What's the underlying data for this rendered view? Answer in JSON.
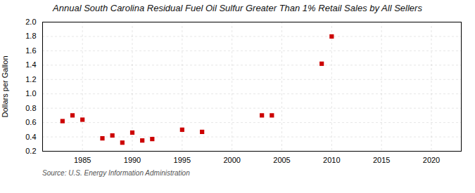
{
  "chart_data": {
    "type": "scatter",
    "title": "Annual South Carolina Residual Fuel Oil Sulfur Greater Than 1% Retail Sales by All Sellers",
    "ylabel": "Dollars per Gallon",
    "source": "Source: U.S. Energy Information Administration",
    "x": [
      1983,
      1984,
      1985,
      1987,
      1988,
      1989,
      1990,
      1991,
      1992,
      1995,
      1997,
      2003,
      2004,
      2009,
      2010
    ],
    "values": [
      0.62,
      0.7,
      0.64,
      0.38,
      0.42,
      0.32,
      0.46,
      0.35,
      0.37,
      0.5,
      0.47,
      0.7,
      0.7,
      1.42,
      1.8
    ],
    "color": "#cc0000",
    "marker": "square",
    "xlim": [
      1981,
      2023
    ],
    "xticks": [
      1985,
      1990,
      1995,
      2000,
      2005,
      2010,
      2015,
      2020
    ],
    "ylim": [
      0.2,
      2.0
    ],
    "yticks": [
      0.2,
      0.4,
      0.6,
      0.8,
      {
        "value": 1.0,
        "label": "1.0"
      },
      1.2,
      1.4,
      1.6,
      1.8,
      {
        "value": 2.0,
        "label": "2.0"
      }
    ],
    "grid": true
  }
}
